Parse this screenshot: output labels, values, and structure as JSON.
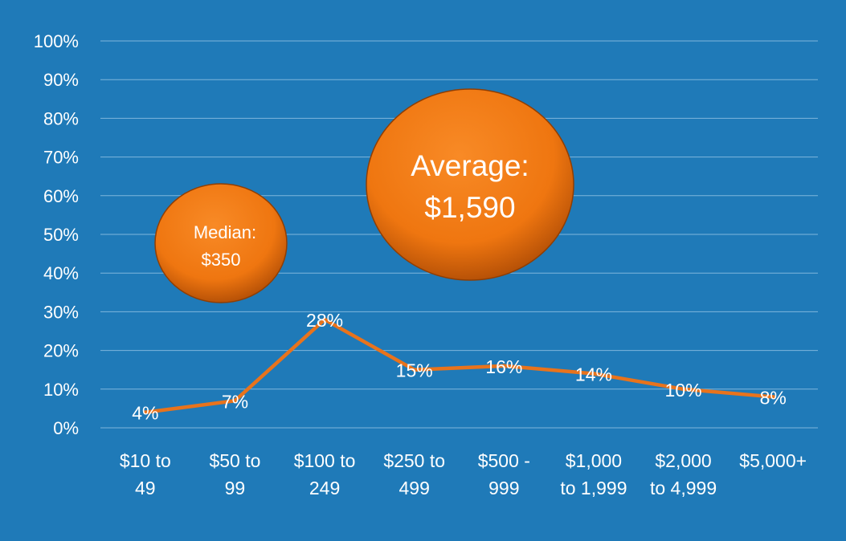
{
  "colors": {
    "background": "#1f7ab8",
    "line": "#e8731c",
    "bubble": "#f07c15",
    "bubble_dark": "#a94a05",
    "grid": "#7fb6dc",
    "text": "#ffffff"
  },
  "chart_data": {
    "type": "line",
    "title": "",
    "xlabel": "",
    "ylabel": "",
    "ylim": [
      0,
      100
    ],
    "yticks": [
      "0%",
      "10%",
      "20%",
      "30%",
      "40%",
      "50%",
      "60%",
      "70%",
      "80%",
      "90%",
      "100%"
    ],
    "grid": true,
    "categories": [
      [
        "$10 to",
        "49"
      ],
      [
        "$50 to",
        "99"
      ],
      [
        "$100 to",
        "249"
      ],
      [
        "$250 to",
        "499"
      ],
      [
        "$500 -",
        "999"
      ],
      [
        "$1,000",
        "to 1,999"
      ],
      [
        "$2,000",
        "to 4,999"
      ],
      [
        "$5,000+"
      ]
    ],
    "values": [
      4,
      7,
      28,
      15,
      16,
      14,
      10,
      8
    ],
    "data_labels": [
      "4%",
      "7%",
      "28%",
      "15%",
      "16%",
      "14%",
      "10%",
      "8%"
    ],
    "annotations": [
      {
        "id": "median",
        "lines": [
          "Median:",
          "$350"
        ]
      },
      {
        "id": "average",
        "lines": [
          "Average:",
          "$1,590"
        ]
      }
    ]
  }
}
